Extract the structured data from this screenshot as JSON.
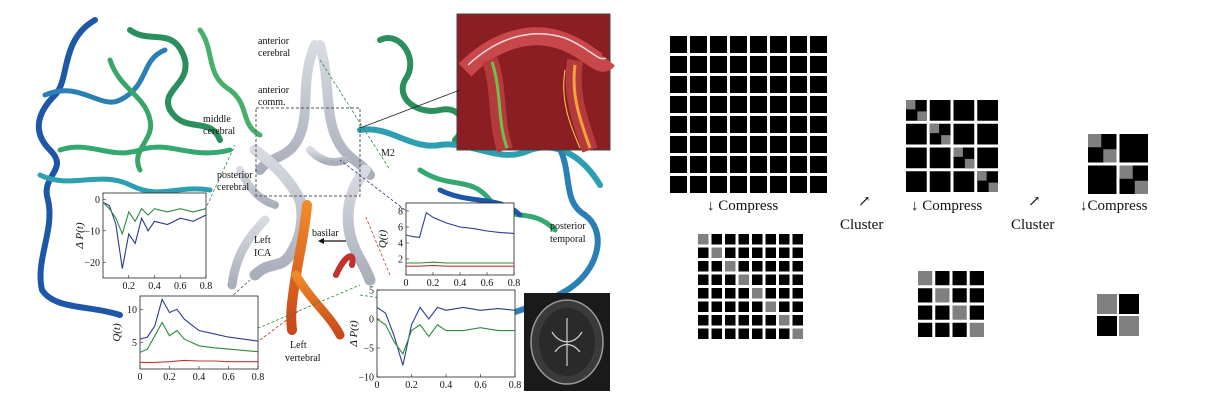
{
  "anatomy_labels": {
    "anterior_cerebral": [
      "anterior",
      "cerebral"
    ],
    "anterior_comm": [
      "anterior",
      "comm."
    ],
    "middle_cerebral": [
      "middle",
      "cerebral"
    ],
    "posterior_cerebral": [
      "posterior",
      "cerebral"
    ],
    "m2": "M2",
    "posterior_temporal": [
      "posterior",
      "temporal"
    ],
    "left_ica": [
      "Left",
      "ICA"
    ],
    "basilar": "basilar",
    "left_vertebral": [
      "Left",
      "vertebral"
    ]
  },
  "pipeline": {
    "compress_label": "↓ Compress",
    "compress_label_tight": "↓Compress",
    "cluster_label": "Cluster",
    "cluster_arrow": "↗",
    "block_color": "#000000",
    "cluster_cell_color": "#808080"
  },
  "chart_data": [
    {
      "type": "line",
      "name_ref": "pressure-chart-upper-left",
      "xlabel": "",
      "ylabel": "Δ P(t)",
      "xlim": [
        0,
        0.8
      ],
      "ylim": [
        -25,
        2
      ],
      "xticks": [
        "0.2",
        "0.4",
        "0.6",
        "0.8"
      ],
      "yticks": [
        "0",
        "−10",
        "−20"
      ],
      "ytick_values": [
        0,
        -10,
        -20
      ],
      "xtick_values": [
        0.2,
        0.4,
        0.6,
        0.8
      ],
      "series": [
        {
          "color": "#2a3b8f",
          "x": [
            0,
            0.05,
            0.1,
            0.15,
            0.2,
            0.25,
            0.3,
            0.35,
            0.4,
            0.5,
            0.6,
            0.7,
            0.8
          ],
          "y": [
            -1,
            -2,
            -8,
            -22,
            -11,
            -14,
            -6,
            -10,
            -7,
            -8,
            -6,
            -7,
            -5
          ]
        },
        {
          "color": "#2e8b3a",
          "x": [
            0,
            0.05,
            0.1,
            0.15,
            0.2,
            0.25,
            0.3,
            0.35,
            0.4,
            0.5,
            0.6,
            0.7,
            0.8
          ],
          "y": [
            -1,
            -3,
            -6,
            -11,
            -4,
            -7,
            -3,
            -5,
            -3,
            -4,
            -3,
            -4,
            -3
          ]
        }
      ]
    },
    {
      "type": "line",
      "name_ref": "flow-chart-lower-left",
      "xlabel": "",
      "ylabel": "Q(t)",
      "xlim": [
        0,
        0.8
      ],
      "ylim": [
        1,
        12
      ],
      "xticks": [
        "0",
        "0.2",
        "0.4",
        "0.6",
        "0.8"
      ],
      "xtick_values": [
        0,
        0.2,
        0.4,
        0.6,
        0.8
      ],
      "yticks": [
        "5",
        "10"
      ],
      "ytick_values": [
        5,
        10
      ],
      "series": [
        {
          "color": "#2a3b8f",
          "x": [
            0,
            0.05,
            0.1,
            0.15,
            0.2,
            0.25,
            0.3,
            0.4,
            0.5,
            0.6,
            0.7,
            0.8
          ],
          "y": [
            5.5,
            5.8,
            7.5,
            11.5,
            9.5,
            10,
            8.5,
            6.8,
            6.3,
            5.8,
            5.5,
            5.2
          ]
        },
        {
          "color": "#2e8b3a",
          "x": [
            0,
            0.05,
            0.1,
            0.15,
            0.2,
            0.25,
            0.3,
            0.4,
            0.5,
            0.6,
            0.7,
            0.8
          ],
          "y": [
            3.5,
            4,
            6,
            8,
            6,
            6.8,
            5.5,
            4.5,
            4.2,
            4,
            3.8,
            3.6
          ]
        },
        {
          "color": "#c0392b",
          "x": [
            0,
            0.1,
            0.2,
            0.3,
            0.4,
            0.5,
            0.6,
            0.7,
            0.8
          ],
          "y": [
            2,
            2,
            2.1,
            2.3,
            2.2,
            2.2,
            2.1,
            2.1,
            2.1
          ]
        }
      ]
    },
    {
      "type": "line",
      "name_ref": "flow-chart-right",
      "xlabel": "",
      "ylabel": "Q(t)",
      "xlim": [
        0,
        0.8
      ],
      "ylim": [
        0,
        9
      ],
      "xticks": [
        "0",
        "0.2",
        "0.4",
        "0.6",
        "0.8"
      ],
      "xtick_values": [
        0,
        0.2,
        0.4,
        0.6,
        0.8
      ],
      "yticks": [
        "2",
        "4",
        "6",
        "8"
      ],
      "ytick_values": [
        2,
        4,
        6,
        8
      ],
      "series": [
        {
          "color": "#2a3b8f",
          "x": [
            0,
            0.05,
            0.1,
            0.15,
            0.2,
            0.3,
            0.4,
            0.5,
            0.6,
            0.7,
            0.8
          ],
          "y": [
            5,
            4.8,
            4.7,
            7.8,
            7.2,
            6.5,
            6,
            5.8,
            5.5,
            5.3,
            5.2
          ]
        },
        {
          "color": "#2e8b3a",
          "x": [
            0,
            0.1,
            0.2,
            0.3,
            0.4,
            0.5,
            0.6,
            0.7,
            0.8
          ],
          "y": [
            1.5,
            1.5,
            1.6,
            1.5,
            1.5,
            1.5,
            1.5,
            1.5,
            1.5
          ]
        },
        {
          "color": "#c0392b",
          "x": [
            0,
            0.1,
            0.2,
            0.3,
            0.4,
            0.5,
            0.6,
            0.7,
            0.8
          ],
          "y": [
            1.1,
            1.1,
            1.2,
            1.1,
            1.1,
            1.1,
            1.1,
            1.1,
            1.1
          ]
        }
      ]
    },
    {
      "type": "line",
      "name_ref": "pressure-chart-lower-right",
      "xlabel": "",
      "ylabel": "Δ P(t)",
      "xlim": [
        0,
        0.8
      ],
      "ylim": [
        -10,
        5
      ],
      "xticks": [
        "0",
        "0.2",
        "0.4",
        "0.6",
        "0.8"
      ],
      "xtick_values": [
        0,
        0.2,
        0.4,
        0.6,
        0.8
      ],
      "yticks": [
        "5",
        "0",
        "−5",
        "−10"
      ],
      "ytick_values": [
        5,
        0,
        -5,
        -10
      ],
      "series": [
        {
          "color": "#2a3b8f",
          "x": [
            0,
            0.05,
            0.1,
            0.15,
            0.2,
            0.25,
            0.3,
            0.35,
            0.4,
            0.5,
            0.6,
            0.7,
            0.8
          ],
          "y": [
            2,
            1,
            -3,
            -8,
            -1,
            2,
            0,
            2,
            1.5,
            2,
            1.5,
            1.8,
            1.5
          ]
        },
        {
          "color": "#2e8b3a",
          "x": [
            0,
            0.05,
            0.1,
            0.15,
            0.2,
            0.25,
            0.3,
            0.35,
            0.4,
            0.5,
            0.6,
            0.7,
            0.8
          ],
          "y": [
            0,
            -1,
            -4,
            -6,
            -2,
            -1,
            -3,
            -1,
            -2,
            -2,
            -1.5,
            -2,
            -2
          ]
        }
      ]
    }
  ]
}
